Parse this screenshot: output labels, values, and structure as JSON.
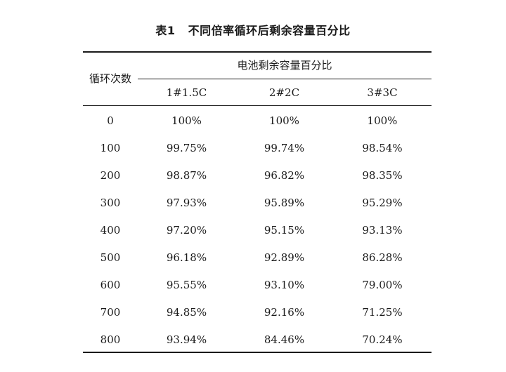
{
  "table": {
    "caption_number": "表1",
    "caption_title": "不同倍率循环后剩余容量百分比",
    "row_header": "循环次数",
    "group_header": "电池剩余容量百分比",
    "columns": [
      "1#1.5C",
      "2#2C",
      "3#3C"
    ],
    "rows": [
      {
        "cycles": "0",
        "v1": "100%",
        "v2": "100%",
        "v3": "100%"
      },
      {
        "cycles": "100",
        "v1": "99.75%",
        "v2": "99.74%",
        "v3": "98.54%"
      },
      {
        "cycles": "200",
        "v1": "98.87%",
        "v2": "96.82%",
        "v3": "98.35%"
      },
      {
        "cycles": "300",
        "v1": "97.93%",
        "v2": "95.89%",
        "v3": "95.29%"
      },
      {
        "cycles": "400",
        "v1": "97.20%",
        "v2": "95.15%",
        "v3": "93.13%"
      },
      {
        "cycles": "500",
        "v1": "96.18%",
        "v2": "92.89%",
        "v3": "86.28%"
      },
      {
        "cycles": "600",
        "v1": "95.55%",
        "v2": "93.10%",
        "v3": "79.00%"
      },
      {
        "cycles": "700",
        "v1": "94.85%",
        "v2": "92.16%",
        "v3": "71.25%"
      },
      {
        "cycles": "800",
        "v1": "93.94%",
        "v2": "84.46%",
        "v3": "70.24%"
      }
    ]
  }
}
